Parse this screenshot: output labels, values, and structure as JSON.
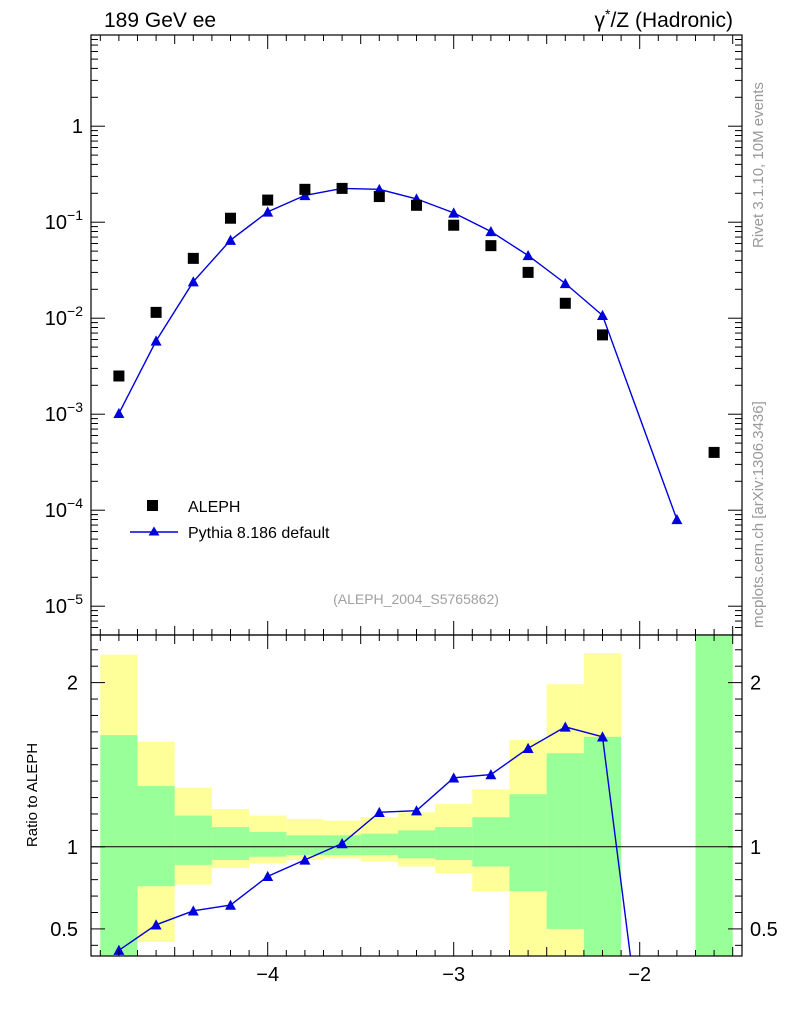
{
  "header": {
    "left_title": "189 GeV ee",
    "right_title_symbol": "γ",
    "right_title_sup": "*",
    "right_title_rest": "/Z (Hadronic)"
  },
  "side_labels": {
    "rivet": "Rivet 3.1.10,  10M events",
    "mcplots": "mcplots.cern.ch [arXiv:1306.3436]"
  },
  "analysis_label": "(ALEPH_2004_S5765862)",
  "colors": {
    "data": "#000000",
    "mc": "#0000dd",
    "band_inner": "#99ff99",
    "band_outer": "#ffff99",
    "ratio_line": "#000000"
  },
  "chart_data": [
    {
      "type": "scatter",
      "panel": "main",
      "y_scale": "log",
      "xlim": [
        -4.95,
        -1.45
      ],
      "ylim_exponent": [
        -5.3,
        0.95
      ],
      "ytick_labels": [
        {
          "base": "10",
          "exp": "−5",
          "value": -5
        },
        {
          "base": "10",
          "exp": "−4",
          "value": -4
        },
        {
          "base": "10",
          "exp": "−3",
          "value": -3
        },
        {
          "base": "10",
          "exp": "−2",
          "value": -2
        },
        {
          "base": "10",
          "exp": "−1",
          "value": -1
        },
        {
          "base": "1",
          "exp": "",
          "value": 0
        }
      ],
      "legend": [
        {
          "label": "ALEPH",
          "marker": "square"
        },
        {
          "label": "Pythia 8.186 default",
          "marker": "triangle-line"
        }
      ],
      "series": [
        {
          "name": "ALEPH",
          "x": [
            -4.8,
            -4.6,
            -4.4,
            -4.2,
            -4.0,
            -3.8,
            -3.6,
            -3.4,
            -3.2,
            -3.0,
            -2.8,
            -2.6,
            -2.4,
            -2.2,
            -1.6
          ],
          "y": [
            0.0025,
            0.0115,
            0.042,
            0.11,
            0.17,
            0.22,
            0.225,
            0.185,
            0.15,
            0.093,
            0.057,
            0.03,
            0.0143,
            0.0067,
            0.0004
          ]
        },
        {
          "name": "Pythia 8.186 default",
          "x": [
            -4.8,
            -4.6,
            -4.4,
            -4.2,
            -4.0,
            -3.8,
            -3.6,
            -3.4,
            -3.2,
            -3.0,
            -2.8,
            -2.6,
            -2.4,
            -2.2,
            -1.8
          ],
          "y": [
            0.00102,
            0.0058,
            0.024,
            0.065,
            0.128,
            0.19,
            0.225,
            0.22,
            0.175,
            0.125,
            0.08,
            0.045,
            0.023,
            0.0107,
            8e-05
          ]
        }
      ]
    },
    {
      "type": "line",
      "panel": "ratio",
      "ylabel": "Ratio to ALEPH",
      "xlim": [
        -4.95,
        -1.45
      ],
      "ylim": [
        0.335,
        2.29
      ],
      "ytick_labels": [
        {
          "label": "0.5",
          "value": 0.5
        },
        {
          "label": "1",
          "value": 1
        },
        {
          "label": "2",
          "value": 2
        }
      ],
      "xtick_labels": [
        {
          "label": "−4",
          "value": -4
        },
        {
          "label": "−3",
          "value": -3
        },
        {
          "label": "−2",
          "value": -2
        }
      ],
      "bands": [
        {
          "x0": -4.9,
          "x1": -4.7,
          "inner": [
            0.3,
            1.68
          ],
          "outer": [
            0.3,
            2.17
          ]
        },
        {
          "x0": -4.7,
          "x1": -4.5,
          "inner": [
            0.76,
            1.37
          ],
          "outer": [
            0.42,
            1.64
          ]
        },
        {
          "x0": -4.5,
          "x1": -4.3,
          "inner": [
            0.89,
            1.19
          ],
          "outer": [
            0.77,
            1.36
          ]
        },
        {
          "x0": -4.3,
          "x1": -4.1,
          "inner": [
            0.92,
            1.12
          ],
          "outer": [
            0.87,
            1.23
          ]
        },
        {
          "x0": -4.1,
          "x1": -3.9,
          "inner": [
            0.94,
            1.09
          ],
          "outer": [
            0.9,
            1.19
          ]
        },
        {
          "x0": -3.9,
          "x1": -3.7,
          "inner": [
            0.95,
            1.07
          ],
          "outer": [
            0.92,
            1.17
          ]
        },
        {
          "x0": -3.7,
          "x1": -3.5,
          "inner": [
            0.95,
            1.07
          ],
          "outer": [
            0.93,
            1.16
          ]
        },
        {
          "x0": -3.5,
          "x1": -3.3,
          "inner": [
            0.95,
            1.08
          ],
          "outer": [
            0.91,
            1.18
          ]
        },
        {
          "x0": -3.3,
          "x1": -3.1,
          "inner": [
            0.93,
            1.1
          ],
          "outer": [
            0.88,
            1.21
          ]
        },
        {
          "x0": -3.1,
          "x1": -2.9,
          "inner": [
            0.92,
            1.12
          ],
          "outer": [
            0.84,
            1.26
          ]
        },
        {
          "x0": -2.9,
          "x1": -2.7,
          "inner": [
            0.88,
            1.18
          ],
          "outer": [
            0.73,
            1.35
          ]
        },
        {
          "x0": -2.7,
          "x1": -2.5,
          "inner": [
            0.73,
            1.32
          ],
          "outer": [
            0.3,
            1.65
          ]
        },
        {
          "x0": -2.5,
          "x1": -2.3,
          "inner": [
            0.5,
            1.57
          ],
          "outer": [
            0.3,
            1.99
          ]
        },
        {
          "x0": -2.3,
          "x1": -2.1,
          "inner": [
            0.3,
            1.67
          ],
          "outer": [
            0.3,
            2.18
          ]
        },
        {
          "x0": -1.7,
          "x1": -1.5,
          "inner": [
            0.3,
            2.4
          ],
          "outer": [
            0.3,
            2.4
          ]
        }
      ],
      "series": [
        {
          "name": "Pythia 8.186 default / ALEPH",
          "x": [
            -4.8,
            -4.6,
            -4.4,
            -4.2,
            -4.0,
            -3.8,
            -3.6,
            -3.4,
            -3.2,
            -3.0,
            -2.8,
            -2.6,
            -2.4,
            -2.2,
            -2.05
          ],
          "y": [
            0.37,
            0.525,
            0.61,
            0.645,
            0.82,
            0.92,
            1.02,
            1.21,
            1.22,
            1.42,
            1.44,
            1.6,
            1.73,
            1.67,
            0.3
          ]
        }
      ]
    }
  ]
}
